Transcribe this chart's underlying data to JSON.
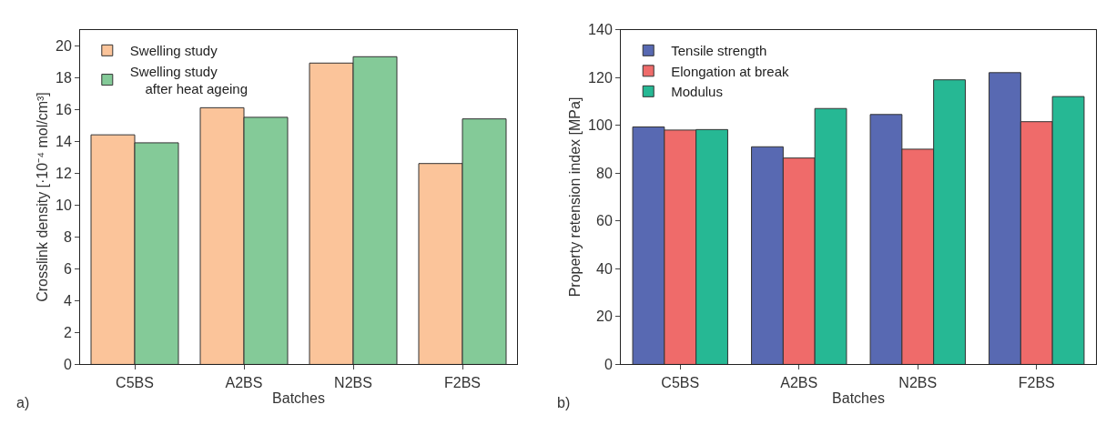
{
  "chart_data": [
    {
      "type": "bar",
      "xlabel": "Batches",
      "ylabel": "Crosslink density [·10⁻⁴ mol/cm³]",
      "categories": [
        "C5BS",
        "A2BS",
        "N2BS",
        "F2BS"
      ],
      "series": [
        {
          "name": "Swelling study",
          "color": "#fbc49a",
          "values": [
            14.4,
            16.1,
            18.9,
            12.6
          ]
        },
        {
          "name": "Swelling study\n    after heat ageing",
          "color": "#84ca98",
          "values": [
            13.9,
            15.5,
            19.3,
            15.4
          ]
        }
      ],
      "ylim": [
        0,
        21
      ],
      "yticks": [
        0,
        2,
        4,
        6,
        8,
        10,
        12,
        14,
        16,
        18,
        20
      ],
      "legend": "top left",
      "annotations": [
        "a)"
      ]
    },
    {
      "type": "bar",
      "xlabel": "Batches",
      "ylabel": "Property retension index [MPa]",
      "categories": [
        "C5BS",
        "A2BS",
        "N2BS",
        "F2BS"
      ],
      "series": [
        {
          "name": "Tensile strength",
          "color": "#5869b2",
          "values": [
            99.3,
            91,
            104.5,
            122
          ]
        },
        {
          "name": "Elongation at break",
          "color": "#ef6b6a",
          "values": [
            98,
            86.3,
            90,
            101.5
          ]
        },
        {
          "name": "Modulus",
          "color": "#26b894",
          "values": [
            98.2,
            107,
            119,
            112
          ]
        }
      ],
      "ylim": [
        0,
        140
      ],
      "yticks": [
        0,
        20,
        40,
        60,
        80,
        100,
        120,
        140
      ],
      "legend": "top left",
      "annotations": [
        "b)"
      ]
    }
  ]
}
